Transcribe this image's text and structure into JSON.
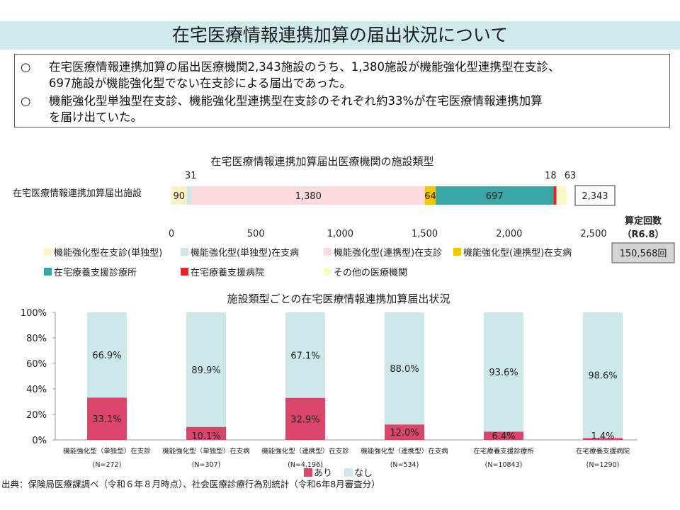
{
  "title": "在宅医療情報連携加算の届出状況について",
  "summary": [
    {
      "mark": "○",
      "line1": "在宅医療情報連携加算の届出医療機関2,343施設のうち、1,380施設が機能強化型連携型在支診、",
      "line2": "697施設が機能強化型でない在支診による届出であった。"
    },
    {
      "mark": "○",
      "line1": "機能強化型単独型在支診、機能強化型連携型在支診のそれぞれ約33%が在宅医療情報連携加算",
      "line2": "を届け出ていた。"
    }
  ],
  "chart_data": [
    {
      "type": "bar",
      "orientation": "horizontal-stacked",
      "title": "在宅医療情報連携加算届出医療機関の施設類型",
      "row_label": "在宅医療情報連携加算届出施設",
      "total_label": "2,343",
      "xlim": [
        0,
        2500
      ],
      "x_ticks": [
        "0",
        "500",
        "1,000",
        "1,500",
        "2,000",
        "2,500"
      ],
      "x_tick_values": [
        0,
        500,
        1000,
        1500,
        2000,
        2500
      ],
      "series": [
        {
          "name": "機能強化型在支診(単独型)",
          "value": 90,
          "label": "90",
          "color": "#fff3c4",
          "label_pos": "inside"
        },
        {
          "name": "機能強化型(単独型)在支病",
          "value": 31,
          "label": "31",
          "color": "#cfe5e6",
          "label_pos": "above"
        },
        {
          "name": "機能強化型(連携型)在支診",
          "value": 1380,
          "label": "1,380",
          "color": "#fadadd",
          "label_pos": "inside"
        },
        {
          "name": "機能強化型(連携型)在支病",
          "value": 64,
          "label": "64",
          "color": "#f5c400",
          "label_pos": "inside"
        },
        {
          "name": "在宅療養支援診療所",
          "value": 697,
          "label": "697",
          "color": "#3aa6a6",
          "label_pos": "inside"
        },
        {
          "name": "在宅療養支援病院",
          "value": 18,
          "label": "18",
          "color": "#e8212e",
          "label_pos": "above"
        },
        {
          "name": "その他の医療機関",
          "value": 63,
          "label": "63",
          "color": "#fff7c8",
          "label_pos": "above"
        }
      ],
      "side_box": {
        "header_line1": "算定回数",
        "header_line2": "（R6.8）",
        "value": "150,568回"
      }
    },
    {
      "type": "bar",
      "orientation": "vertical-stacked-100",
      "title": "施設類型ごとの在宅医療情報連携加算届出状況",
      "ylim": [
        0,
        100
      ],
      "y_ticks": [
        "0%",
        "20%",
        "40%",
        "60%",
        "80%",
        "100%"
      ],
      "y_tick_values": [
        0,
        20,
        40,
        60,
        80,
        100
      ],
      "categories": [
        {
          "label": "機能強化型（単独型）在支診",
          "n": "(N=272)"
        },
        {
          "label": "機能強化型（単独型）在支病",
          "n": "(N=307)"
        },
        {
          "label": "機能強化型（連携型）在支診",
          "n": "(N=4,196)"
        },
        {
          "label": "機能強化型（連携型）在支病",
          "n": "(N=534)"
        },
        {
          "label": "在宅療養支援診療所",
          "n": "(N=10843)"
        },
        {
          "label": "在宅療養支援病院",
          "n": "(N=1290)"
        }
      ],
      "series": [
        {
          "name": "あり",
          "color": "#d9456b",
          "values": [
            33.1,
            10.1,
            32.9,
            12.0,
            6.4,
            1.4
          ],
          "labels": [
            "33.1%",
            "10.1%",
            "32.9%",
            "12.0%",
            "6.4%",
            "1.4%"
          ]
        },
        {
          "name": "なし",
          "color": "#cde8e8",
          "values": [
            66.9,
            89.9,
            67.1,
            88.0,
            93.6,
            98.6
          ],
          "labels": [
            "66.9%",
            "89.9%",
            "67.1%",
            "88.0%",
            "93.6%",
            "98.6%"
          ]
        }
      ]
    }
  ],
  "source": "出典：保険局医療課調べ（令和６年８月時点）、社会医療診療行為別統計（令和6年8月審査分）"
}
